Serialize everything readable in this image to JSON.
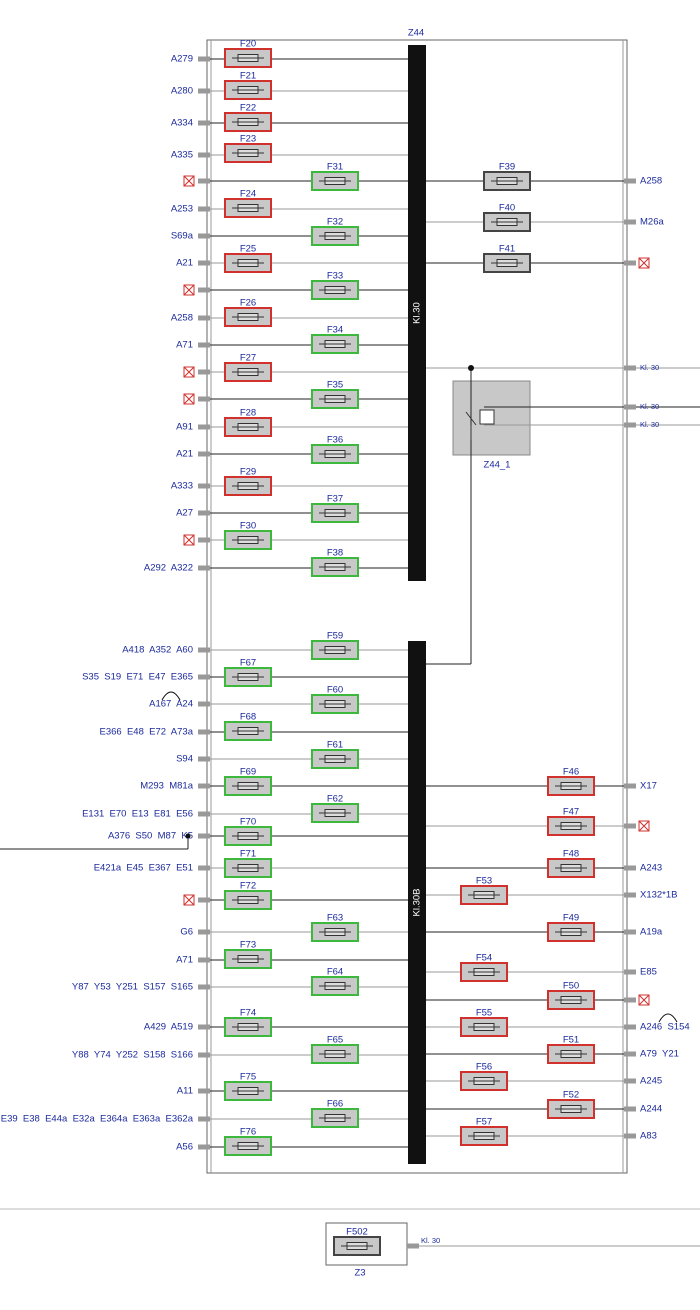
{
  "box_label": "Z44",
  "busbars": [
    "Kl.30",
    "Kl.30B"
  ],
  "relay_label": "Z44_1",
  "left_pins": [
    "A279",
    "A280",
    "A334",
    "A335",
    null,
    "A253",
    "S69a",
    "A21",
    null,
    "A258",
    "A71",
    null,
    null,
    "A91",
    "A21",
    "A333",
    "A27",
    null,
    "A292  A322",
    "A418  A352  A60",
    "S35  S19  E71  E47  E365",
    "A167  A24",
    "E366  E48  E72  A73a",
    "S94",
    "M293  M81a",
    "E131  E70  E13  E81  E56",
    "A376  S50  M87  K5",
    "E421a  E45  E367  E51",
    null,
    "G6",
    "A71",
    "Y87  Y53  Y251  S157  S165",
    "A429  A519",
    "Y88  Y74  Y252  S158  S166",
    "A11",
    "E39  E38  E44a  E32a  E364a  E363a  E362a",
    "A56"
  ],
  "right_pins": [
    "A258",
    "M26a",
    null,
    "Kl. 30",
    "Kl. 30",
    "Kl. 30",
    "X17",
    null,
    "A243",
    "X132*1B",
    "A19a",
    "E85",
    null,
    "A246  S154",
    "A79  Y21",
    "A245",
    "A244",
    "A83"
  ],
  "fuses": [
    {
      "label": "F20",
      "color": "#d0312d"
    },
    {
      "label": "F21",
      "color": "#d0312d"
    },
    {
      "label": "F22",
      "color": "#d0312d"
    },
    {
      "label": "F23",
      "color": "#d0312d"
    },
    {
      "label": "F24",
      "color": "#d0312d"
    },
    {
      "label": "F25",
      "color": "#d0312d"
    },
    {
      "label": "F26",
      "color": "#d0312d"
    },
    {
      "label": "F27",
      "color": "#d0312d"
    },
    {
      "label": "F28",
      "color": "#d0312d"
    },
    {
      "label": "F29",
      "color": "#d0312d"
    },
    {
      "label": "F30",
      "color": "#3cb93c"
    },
    {
      "label": "F31",
      "color": "#3cb93c"
    },
    {
      "label": "F32",
      "color": "#3cb93c"
    },
    {
      "label": "F33",
      "color": "#3cb93c"
    },
    {
      "label": "F34",
      "color": "#3cb93c"
    },
    {
      "label": "F35",
      "color": "#3cb93c"
    },
    {
      "label": "F36",
      "color": "#3cb93c"
    },
    {
      "label": "F37",
      "color": "#3cb93c"
    },
    {
      "label": "F38",
      "color": "#3cb93c"
    },
    {
      "label": "F39",
      "color": "#444444"
    },
    {
      "label": "F40",
      "color": "#444444"
    },
    {
      "label": "F41",
      "color": "#444444"
    },
    {
      "label": "F59",
      "color": "#3cb93c"
    },
    {
      "label": "F60",
      "color": "#3cb93c"
    },
    {
      "label": "F61",
      "color": "#3cb93c"
    },
    {
      "label": "F62",
      "color": "#3cb93c"
    },
    {
      "label": "F63",
      "color": "#3cb93c"
    },
    {
      "label": "F64",
      "color": "#3cb93c"
    },
    {
      "label": "F65",
      "color": "#3cb93c"
    },
    {
      "label": "F66",
      "color": "#3cb93c"
    },
    {
      "label": "F67",
      "color": "#3cb93c"
    },
    {
      "label": "F68",
      "color": "#3cb93c"
    },
    {
      "label": "F69",
      "color": "#3cb93c"
    },
    {
      "label": "F70",
      "color": "#3cb93c"
    },
    {
      "label": "F71",
      "color": "#3cb93c"
    },
    {
      "label": "F72",
      "color": "#3cb93c"
    },
    {
      "label": "F73",
      "color": "#3cb93c"
    },
    {
      "label": "F74",
      "color": "#3cb93c"
    },
    {
      "label": "F75",
      "color": "#3cb93c"
    },
    {
      "label": "F76",
      "color": "#3cb93c"
    },
    {
      "label": "F46",
      "color": "#d0312d"
    },
    {
      "label": "F47",
      "color": "#d0312d"
    },
    {
      "label": "F48",
      "color": "#d0312d"
    },
    {
      "label": "F49",
      "color": "#d0312d"
    },
    {
      "label": "F50",
      "color": "#d0312d"
    },
    {
      "label": "F51",
      "color": "#d0312d"
    },
    {
      "label": "F52",
      "color": "#d0312d"
    },
    {
      "label": "F53",
      "color": "#d0312d"
    },
    {
      "label": "F54",
      "color": "#d0312d"
    },
    {
      "label": "F55",
      "color": "#d0312d"
    },
    {
      "label": "F56",
      "color": "#d0312d"
    },
    {
      "label": "F57",
      "color": "#d0312d"
    }
  ],
  "bottom": {
    "fuse": {
      "label": "F502",
      "color": "#444444"
    },
    "label": "Z3",
    "pin": "Kl. 30"
  }
}
